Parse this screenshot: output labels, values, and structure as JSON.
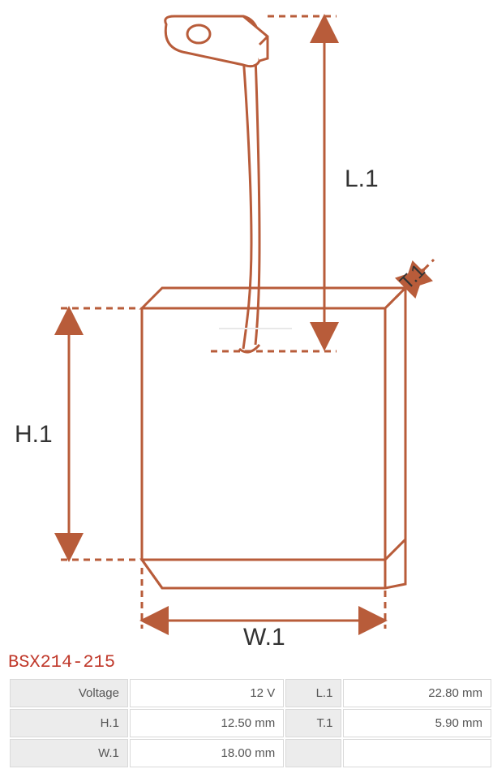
{
  "part_number": "BSX214-215",
  "diagram": {
    "type": "technical-drawing",
    "stroke_color": "#b85c3a",
    "stroke_width": 3,
    "dash_pattern": "8,6",
    "labels": {
      "L1": "L.1",
      "H1": "H.1",
      "W1": "W.1",
      "T1": "T.1"
    },
    "label_fontsize": 30,
    "label_color": "#333333"
  },
  "specs": {
    "rows": [
      {
        "label_a": "Voltage",
        "value_a": "12 V",
        "label_b": "L.1",
        "value_b": "22.80 mm"
      },
      {
        "label_a": "H.1",
        "value_a": "12.50 mm",
        "label_b": "T.1",
        "value_b": "5.90 mm"
      },
      {
        "label_a": "W.1",
        "value_a": "18.00 mm",
        "label_b": "",
        "value_b": ""
      }
    ]
  },
  "colors": {
    "title": "#c0392b",
    "table_border": "#d9d9d9",
    "table_label_bg": "#ececec",
    "table_value_bg": "#ffffff",
    "text": "#555555"
  }
}
